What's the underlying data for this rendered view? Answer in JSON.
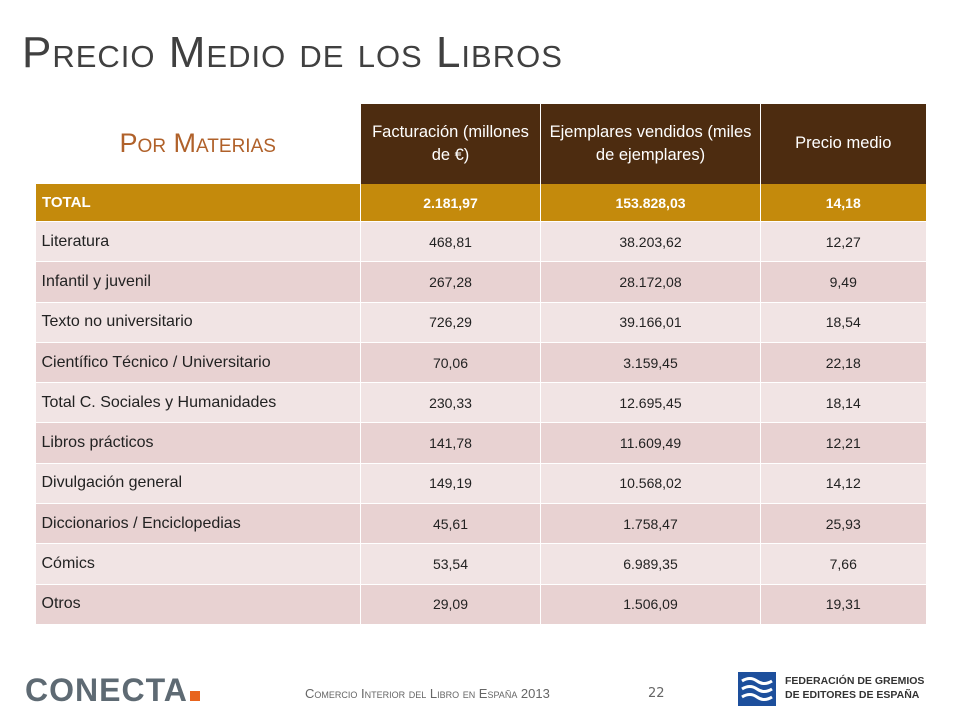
{
  "header": {
    "title": "Precio Medio de los Libros"
  },
  "table": {
    "subtitle": "Por Materias",
    "columns": [
      "Facturación (millones de €)",
      "Ejemplares vendidos (miles de ejemplares)",
      "Precio medio"
    ],
    "total": [
      "TOTAL",
      "2.181,97",
      "153.828,03",
      "14,18"
    ],
    "rows": [
      [
        "Literatura",
        "468,81",
        "38.203,62",
        "12,27"
      ],
      [
        "Infantil y juvenil",
        "267,28",
        "28.172,08",
        "9,49"
      ],
      [
        "Texto no universitario",
        "726,29",
        "39.166,01",
        "18,54"
      ],
      [
        "Científico Técnico / Universitario",
        "70,06",
        "3.159,45",
        "22,18"
      ],
      [
        "Total C. Sociales y Humanidades",
        "230,33",
        "12.695,45",
        "18,14"
      ],
      [
        "Libros prácticos",
        "141,78",
        "11.609,49",
        "12,21"
      ],
      [
        "Divulgación general",
        "149,19",
        "10.568,02",
        "14,12"
      ],
      [
        "Diccionarios / Enciclopedias",
        "45,61",
        "1.758,47",
        "25,93"
      ],
      [
        "Cómics",
        "53,54",
        "6.989,35",
        "7,66"
      ],
      [
        "Otros",
        "29,09",
        "1.506,09",
        "19,31"
      ]
    ]
  },
  "footer": {
    "logo": "CONECTA",
    "text": "Comercio Interior del Libro en España 2013",
    "page": "22",
    "federation": [
      "FEDERACIÓN DE GREMIOS",
      "DE EDITORES DE ESPAÑA"
    ]
  }
}
